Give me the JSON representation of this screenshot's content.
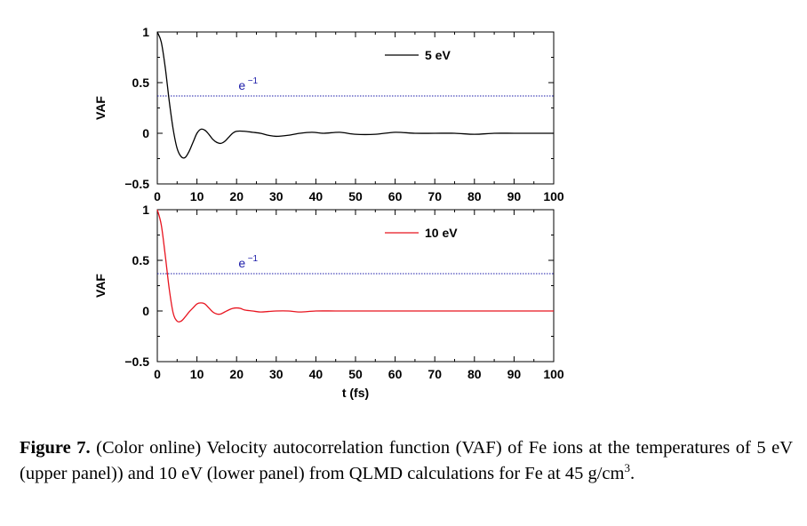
{
  "chart_data": [
    {
      "type": "line",
      "panel": "upper",
      "ylabel": "VAF",
      "xlabel": "",
      "xlim": [
        0,
        100
      ],
      "ylim": [
        -0.5,
        1
      ],
      "xticks": [
        "0",
        "10",
        "20",
        "30",
        "40",
        "50",
        "60",
        "70",
        "80",
        "90",
        "100"
      ],
      "yticks": [
        "1",
        "0.5",
        "0",
        "−0.5"
      ],
      "legend_position": "top-right",
      "series": [
        {
          "name": "5 eV",
          "color": "#000000",
          "x": [
            0,
            1,
            2,
            3,
            4,
            5,
            6,
            7,
            8,
            9,
            10,
            11,
            12,
            13,
            14,
            15,
            16,
            17,
            18,
            19,
            20,
            22,
            24,
            26,
            28,
            30,
            33,
            36,
            39,
            42,
            46,
            50,
            55,
            60,
            65,
            70,
            75,
            80,
            85,
            90,
            95,
            100
          ],
          "y": [
            1.0,
            0.9,
            0.65,
            0.32,
            0.04,
            -0.15,
            -0.23,
            -0.24,
            -0.18,
            -0.09,
            0.0,
            0.04,
            0.03,
            -0.01,
            -0.06,
            -0.09,
            -0.1,
            -0.08,
            -0.04,
            0.0,
            0.02,
            0.02,
            0.01,
            0.0,
            -0.02,
            -0.03,
            -0.02,
            0.0,
            0.01,
            0.0,
            0.01,
            -0.01,
            -0.01,
            0.01,
            0.0,
            0.0,
            0.0,
            -0.01,
            0.0,
            0.0,
            0.0,
            0.0
          ]
        }
      ],
      "reference_line": {
        "label_base": "e",
        "label_exp": "−1",
        "y": 0.368,
        "color": "#1a1aa8"
      }
    },
    {
      "type": "line",
      "panel": "lower",
      "ylabel": "VAF",
      "xlabel": "t (fs)",
      "xlim": [
        0,
        100
      ],
      "ylim": [
        -0.5,
        1
      ],
      "xticks": [
        "0",
        "10",
        "20",
        "30",
        "40",
        "50",
        "60",
        "70",
        "80",
        "90",
        "100"
      ],
      "yticks": [
        "1",
        "0.5",
        "0",
        "−0.5"
      ],
      "legend_position": "top-right",
      "series": [
        {
          "name": "10 eV",
          "color": "#e8141f",
          "x": [
            0,
            1,
            2,
            3,
            4,
            5,
            6,
            7,
            8,
            9,
            10,
            11,
            12,
            13,
            14,
            15,
            16,
            17,
            18,
            19,
            20,
            21,
            22,
            24,
            26,
            28,
            30,
            33,
            36,
            40,
            45,
            50,
            55,
            60,
            65,
            70,
            75,
            80,
            85,
            90,
            95,
            100
          ],
          "y": [
            1.0,
            0.85,
            0.55,
            0.22,
            -0.02,
            -0.1,
            -0.1,
            -0.06,
            -0.01,
            0.03,
            0.07,
            0.08,
            0.07,
            0.03,
            -0.01,
            -0.03,
            -0.03,
            -0.01,
            0.01,
            0.025,
            0.03,
            0.025,
            0.01,
            0.0,
            -0.01,
            -0.005,
            0.0,
            0.0,
            -0.01,
            0.0,
            0.0,
            0.0,
            0.0,
            0.0,
            0.0,
            0.0,
            0.0,
            0.0,
            0.0,
            0.0,
            0.0,
            0.0
          ]
        }
      ],
      "reference_line": {
        "label_base": "e",
        "label_exp": "−1",
        "y": 0.368,
        "color": "#1a1aa8"
      }
    }
  ],
  "caption": {
    "label": "Figure 7.",
    "text": " (Color online) Velocity autocorrelation function (VAF) of Fe ions at the temperatures of 5 eV (upper panel)) and 10 eV (lower panel) from QLMD calculations for Fe at 45 g/cm",
    "sup": "3",
    "tail": "."
  }
}
